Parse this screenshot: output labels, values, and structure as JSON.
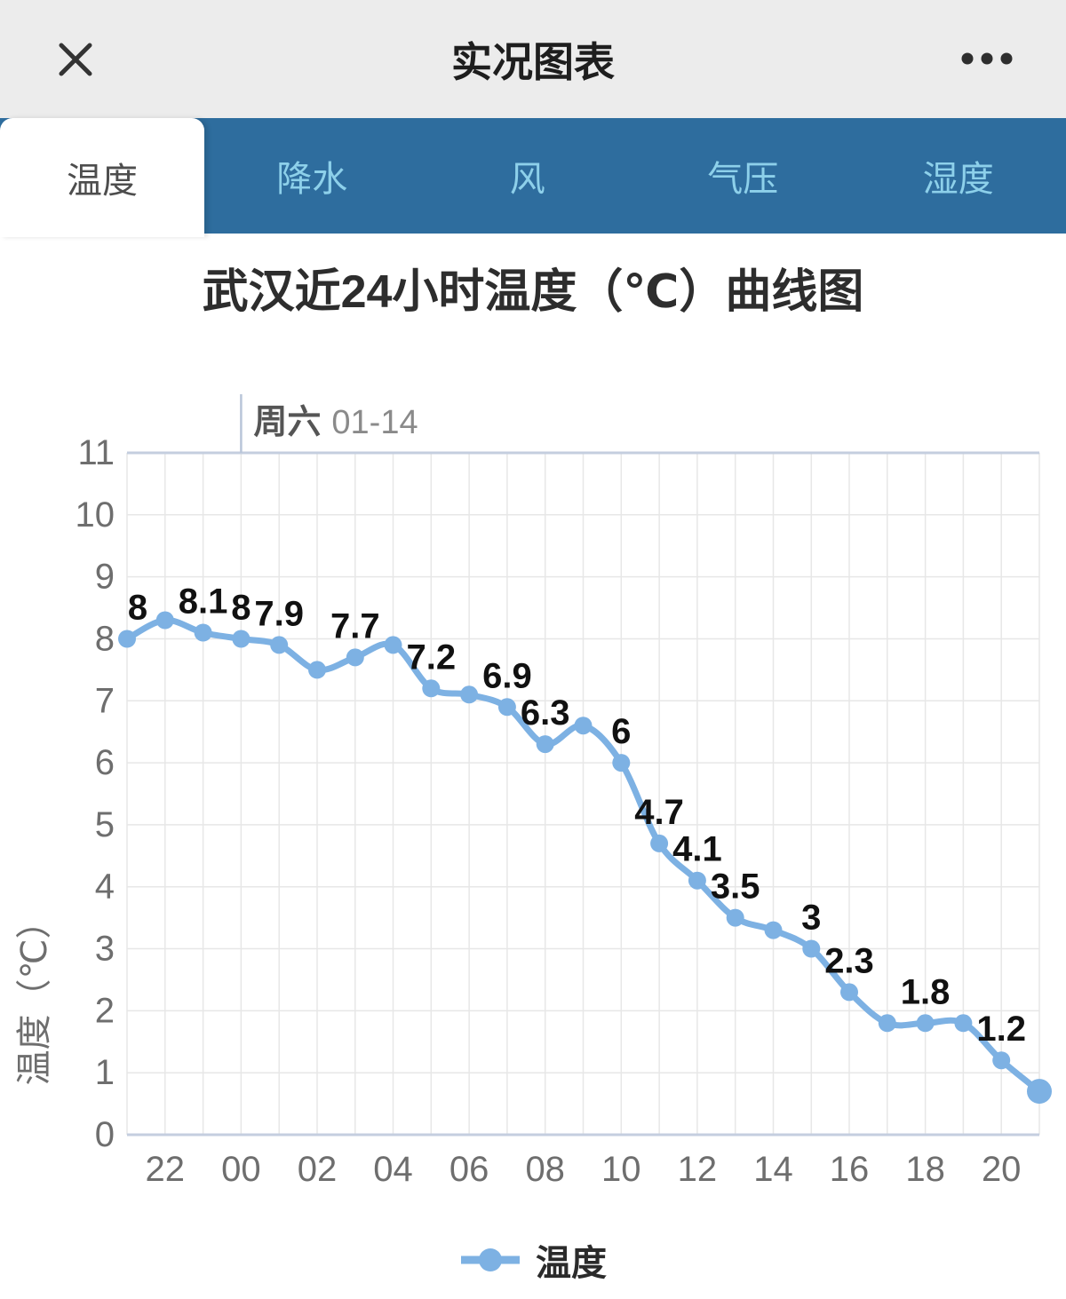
{
  "header": {
    "title": "实况图表",
    "close_icon": "close-x",
    "more_icon": "ellipsis"
  },
  "tabs": {
    "active_index": 0,
    "items": [
      {
        "label": "温度"
      },
      {
        "label": "降水"
      },
      {
        "label": "风"
      },
      {
        "label": "气压"
      },
      {
        "label": "湿度"
      }
    ]
  },
  "chart_data": {
    "type": "line",
    "title": "武汉近24小时温度（℃）曲线图",
    "ylabel": "温度（℃）",
    "ylim": [
      0,
      11
    ],
    "y_tick_labels": [
      "0",
      "1",
      "2",
      "3",
      "4",
      "5",
      "6",
      "7",
      "8",
      "9",
      "10",
      "11"
    ],
    "x_hours": [
      "21",
      "22",
      "23",
      "00",
      "01",
      "02",
      "03",
      "04",
      "05",
      "06",
      "07",
      "08",
      "09",
      "10",
      "11",
      "12",
      "13",
      "14",
      "15",
      "16",
      "17",
      "18",
      "19",
      "20",
      "21"
    ],
    "x_tick_labels": [
      "22",
      "00",
      "02",
      "04",
      "06",
      "08",
      "10",
      "12",
      "14",
      "16",
      "18",
      "20"
    ],
    "series": [
      {
        "name": "温度",
        "values": [
          8,
          8.3,
          8.1,
          8,
          7.9,
          7.5,
          7.7,
          7.9,
          7.2,
          7.1,
          6.9,
          6.3,
          6.6,
          6,
          4.7,
          4.1,
          3.5,
          3.3,
          3,
          2.3,
          1.8,
          1.8,
          1.8,
          1.2,
          0.7
        ],
        "point_labels": [
          "8",
          "",
          "8.1",
          "8",
          "7.9",
          "",
          "7.7",
          "",
          "7.2",
          "",
          "6.9",
          "6.3",
          "",
          "6",
          "4.7",
          "4.1",
          "3.5",
          "",
          "3",
          "2.3",
          "",
          "1.8",
          "",
          "1.2",
          ""
        ]
      }
    ],
    "day_marker": {
      "index": 3,
      "weekday": "周六",
      "date": "01-14"
    },
    "grid": true,
    "legend_position": "bottom",
    "line_color": "#7db1e3"
  },
  "legend": {
    "label": "温度"
  },
  "colors": {
    "header_bg": "#ececec",
    "tab_bar_bg": "#2e6d9e",
    "tab_inactive_text": "#8dd0ea",
    "tab_active_bg": "#ffffff",
    "tab_active_text": "#4d4d4d",
    "line": "#7db1e3",
    "grid_line": "#e7e7e7",
    "axis_line": "#c4cedf",
    "day_marker_line": "#b9c5d9",
    "data_label": "#111111",
    "axis_text": "#6e6e6e",
    "title_text": "#2d2d2d"
  }
}
